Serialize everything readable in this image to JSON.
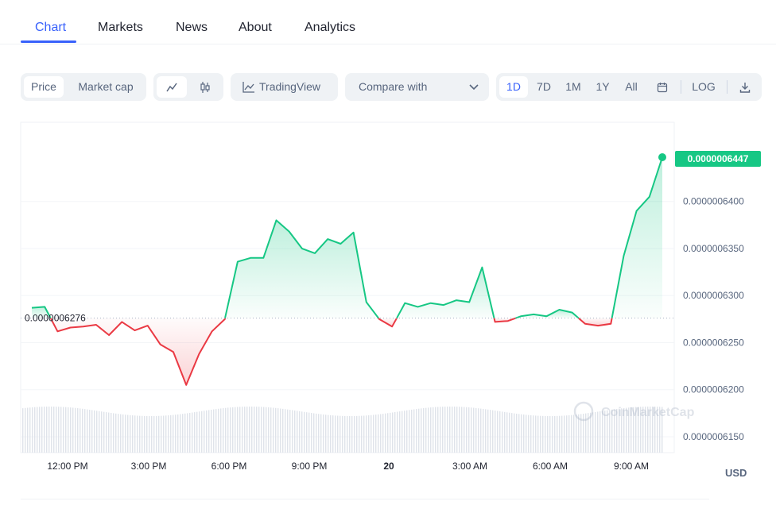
{
  "tabs": [
    {
      "label": "Chart",
      "active": true
    },
    {
      "label": "Markets"
    },
    {
      "label": "News"
    },
    {
      "label": "About"
    },
    {
      "label": "Analytics"
    }
  ],
  "toolbar": {
    "price_label": "Price",
    "market_cap_label": "Market cap",
    "line_icon": "line-chart-icon",
    "candle_icon": "candlestick-icon",
    "tradingview_label": "TradingView",
    "compare_label": "Compare with",
    "ranges": [
      "1D",
      "7D",
      "1M",
      "1Y",
      "All"
    ],
    "active_range": "1D",
    "calendar_icon": "calendar-icon",
    "log_label": "LOG",
    "download_icon": "download-icon"
  },
  "watermark": "CoinMarketCap",
  "currency_label": "USD",
  "colors": {
    "accent": "#3861fb",
    "up": "#16c784",
    "down": "#ea3943"
  },
  "chart_data": {
    "type": "area",
    "baseline_value": 6.276e-07,
    "baseline_label": "0.0000006276",
    "current_price": 6.447e-07,
    "current_price_label": "0.0000006447",
    "x_ticks": [
      "12:00 PM",
      "3:00 PM",
      "6:00 PM",
      "9:00 PM",
      "20",
      "3:00 AM",
      "6:00 AM",
      "9:00 AM"
    ],
    "y_ticks": [
      "0.0000006400",
      "0.0000006350",
      "0.0000006300",
      "0.0000006250",
      "0.0000006200",
      "0.0000006150"
    ],
    "ylim": [
      6.133e-07,
      6.465e-07
    ],
    "x": [
      "10:30 AM",
      "11:00 AM",
      "11:30 AM",
      "12:00 PM",
      "12:30 PM",
      "1:00 PM",
      "1:30 PM",
      "2:00 PM",
      "2:30 PM",
      "3:00 PM",
      "3:30 PM",
      "4:00 PM",
      "4:15 PM",
      "4:30 PM",
      "5:00 PM",
      "5:30 PM",
      "5:45 PM",
      "6:00 PM",
      "6:30 PM",
      "7:00 PM",
      "7:30 PM",
      "8:00 PM",
      "8:30 PM",
      "9:00 PM",
      "9:30 PM",
      "10:00 PM",
      "10:30 PM",
      "11:00 PM",
      "11:30 PM",
      "12:00 AM",
      "12:30 AM",
      "1:00 AM",
      "1:30 AM",
      "2:00 AM",
      "2:30 AM",
      "3:00 AM",
      "3:30 AM",
      "4:00 AM",
      "4:30 AM",
      "5:00 AM",
      "5:30 AM",
      "6:00 AM",
      "6:30 AM",
      "7:00 AM",
      "7:30 AM",
      "8:00 AM",
      "8:30 AM",
      "9:00 AM",
      "9:30 AM",
      "10:00 AM"
    ],
    "values": [
      6.287e-07,
      6.288e-07,
      6.262e-07,
      6.266e-07,
      6.267e-07,
      6.269e-07,
      6.258e-07,
      6.272e-07,
      6.263e-07,
      6.268e-07,
      6.248e-07,
      6.24e-07,
      6.205e-07,
      6.238e-07,
      6.262e-07,
      6.275e-07,
      6.336e-07,
      6.34e-07,
      6.34e-07,
      6.38e-07,
      6.368e-07,
      6.35e-07,
      6.345e-07,
      6.36e-07,
      6.355e-07,
      6.367e-07,
      6.293e-07,
      6.275e-07,
      6.267e-07,
      6.292e-07,
      6.288e-07,
      6.292e-07,
      6.29e-07,
      6.295e-07,
      6.293e-07,
      6.33e-07,
      6.272e-07,
      6.273e-07,
      6.278e-07,
      6.28e-07,
      6.278e-07,
      6.285e-07,
      6.282e-07,
      6.27e-07,
      6.268e-07,
      6.27e-07,
      6.342e-07,
      6.39e-07,
      6.405e-07,
      6.447e-07
    ]
  }
}
